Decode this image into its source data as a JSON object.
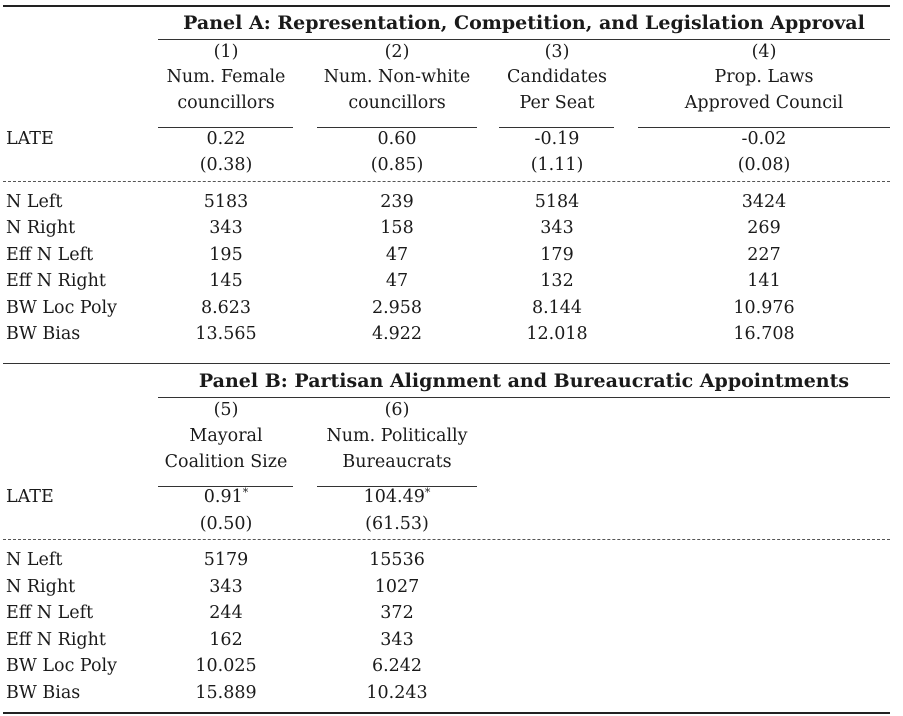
{
  "stat_labels": [
    "N Left",
    "N Right",
    "Eff N Left",
    "Eff N Right",
    "BW Loc Poly",
    "BW Bias"
  ],
  "late_label": "LATE",
  "panel_a": {
    "title": "Panel A: Representation, Competition, and Legislation Approval",
    "columns": [
      {
        "num": "(1)",
        "h1": "Num. Female",
        "h2": "councillors",
        "late": "0.22",
        "se": "(0.38)",
        "stats": [
          "5183",
          "343",
          "195",
          "145",
          "8.623",
          "13.565"
        ]
      },
      {
        "num": "(2)",
        "h1": "Num. Non-white",
        "h2": "councillors",
        "late": "0.60",
        "se": "(0.85)",
        "stats": [
          "239",
          "158",
          "47",
          "47",
          "2.958",
          "4.922"
        ]
      },
      {
        "num": "(3)",
        "h1": "Candidates",
        "h2": "Per Seat",
        "late": "-0.19",
        "se": "(1.11)",
        "stats": [
          "5184",
          "343",
          "179",
          "132",
          "8.144",
          "12.018"
        ]
      },
      {
        "num": "(4)",
        "h1": "Prop. Laws",
        "h2": "Approved Council",
        "late": "-0.02",
        "se": "(0.08)",
        "stats": [
          "3424",
          "269",
          "227",
          "141",
          "10.976",
          "16.708"
        ]
      }
    ]
  },
  "panel_b": {
    "title": "Panel B: Partisan Alignment and Bureaucratic Appointments",
    "columns": [
      {
        "num": "(5)",
        "h1": "Mayoral",
        "h2": "Coalition Size",
        "late": "0.91",
        "star": "*",
        "se": "(0.50)",
        "stats": [
          "5179",
          "343",
          "244",
          "162",
          "10.025",
          "15.889"
        ]
      },
      {
        "num": "(6)",
        "h1": "Num. Politically",
        "h2": "Bureaucrats",
        "late": "104.49",
        "star": "*",
        "se": "(61.53)",
        "stats": [
          "15536",
          "1027",
          "372",
          "343",
          "6.242",
          "10.243"
        ]
      }
    ]
  }
}
